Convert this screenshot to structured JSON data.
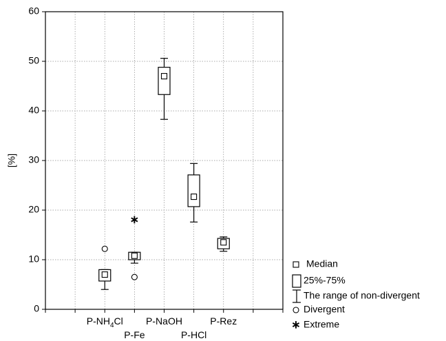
{
  "chart_data": {
    "type": "box",
    "ylabel": "[%]",
    "ylim": [
      0,
      60
    ],
    "yticks": [
      0,
      10,
      20,
      30,
      40,
      50,
      60
    ],
    "grid": true,
    "categories": [
      "P-NH4Cl",
      "P-Fe",
      "P-NaOH",
      "P-HCl",
      "P-Rez"
    ],
    "tick_labels": [
      {
        "main": "P-NH",
        "sub": "4",
        "tail": "Cl"
      },
      {
        "main": "P-Fe",
        "sub": "",
        "tail": ""
      },
      {
        "main": "P-NaOH",
        "sub": "",
        "tail": ""
      },
      {
        "main": "P-HCl",
        "sub": "",
        "tail": ""
      },
      {
        "main": "P-Rez",
        "sub": "",
        "tail": ""
      }
    ],
    "boxes": [
      {
        "category": "P-NH4Cl",
        "median": 7.0,
        "q1": 5.7,
        "q3": 8.0,
        "whisker_low": 4.0,
        "whisker_high": 8.0,
        "divergent": [
          12.2
        ],
        "extreme": []
      },
      {
        "category": "P-Fe",
        "median": 10.8,
        "q1": 10.0,
        "q3": 11.5,
        "whisker_low": 9.3,
        "whisker_high": 11.5,
        "divergent": [
          6.5
        ],
        "extreme": [
          18.0
        ]
      },
      {
        "category": "P-NaOH",
        "median": 47.0,
        "q1": 43.3,
        "q3": 48.8,
        "whisker_low": 38.3,
        "whisker_high": 50.6,
        "divergent": [],
        "extreme": []
      },
      {
        "category": "P-HCl",
        "median": 22.7,
        "q1": 20.7,
        "q3": 27.1,
        "whisker_low": 17.6,
        "whisker_high": 29.4,
        "divergent": [],
        "extreme": []
      },
      {
        "category": "P-Rez",
        "median": 13.5,
        "q1": 12.2,
        "q3": 14.3,
        "whisker_low": 11.7,
        "whisker_high": 14.6,
        "divergent": [],
        "extreme": []
      }
    ],
    "legend": {
      "placement": "bottom-right",
      "items": [
        {
          "symbol": "median",
          "label": "Median"
        },
        {
          "symbol": "box",
          "label": "25%-75%"
        },
        {
          "symbol": "whisker",
          "label": "The range of non-divergent"
        },
        {
          "symbol": "divergent",
          "label": "Divergent"
        },
        {
          "symbol": "extreme",
          "label": "Extreme"
        }
      ]
    }
  }
}
